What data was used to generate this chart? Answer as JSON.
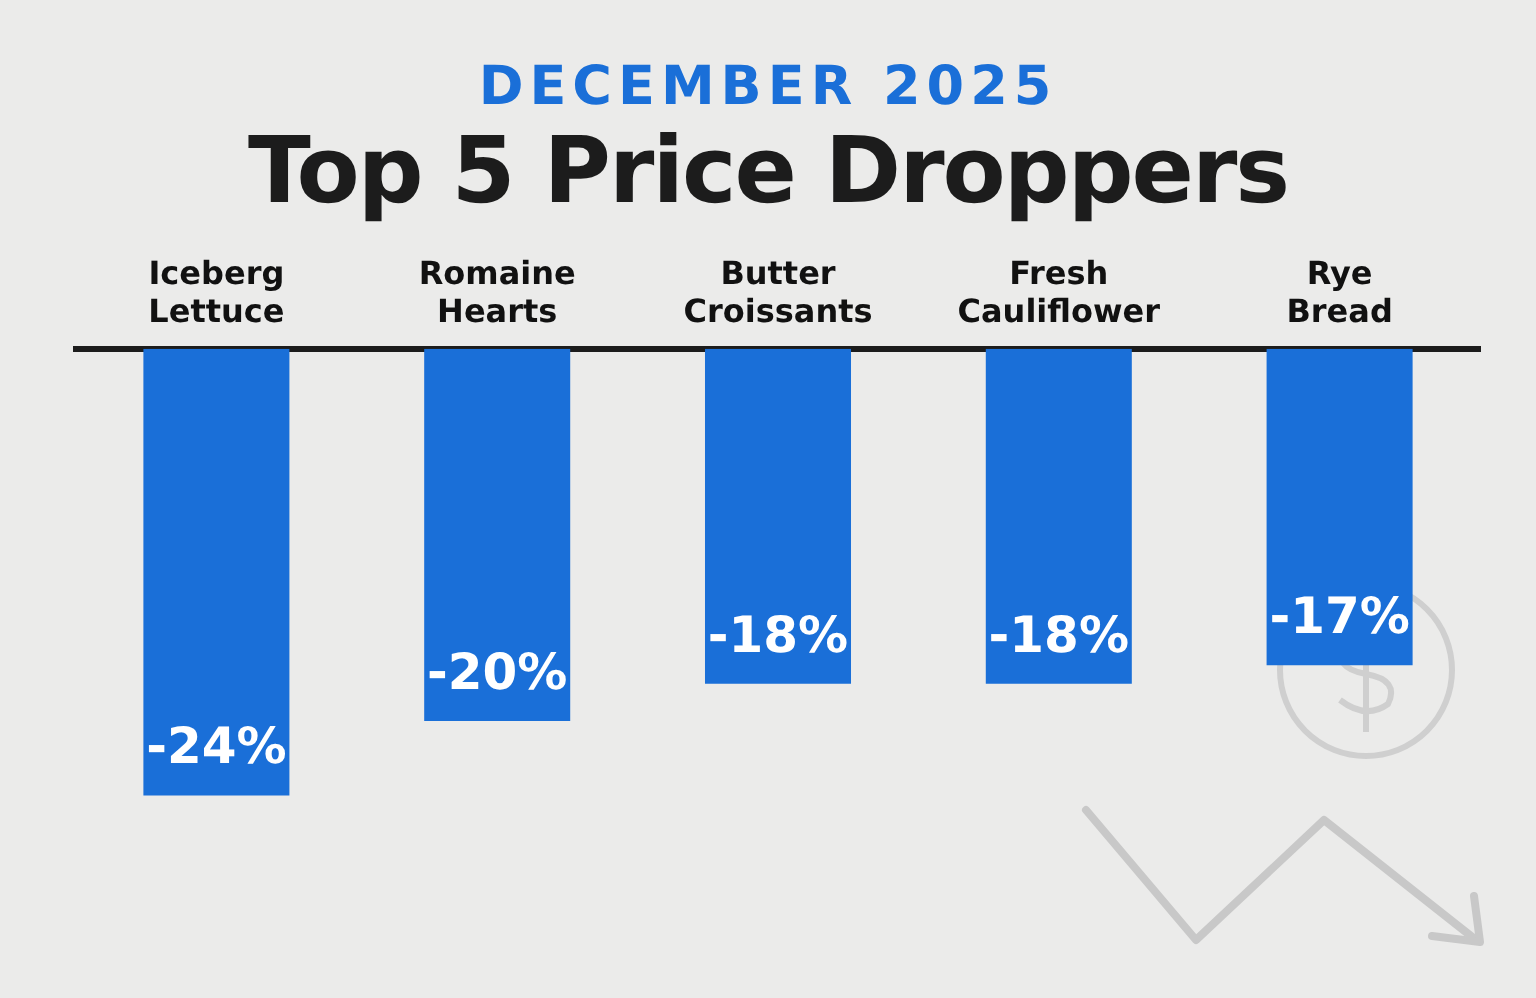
{
  "chart_data": {
    "type": "bar",
    "subtitle": "DECEMBER 2025",
    "title": "Top 5 Price Droppers",
    "categories": [
      "Iceberg Lettuce",
      "Romaine Hearts",
      "Butter Croissants",
      "Fresh Cauliflower",
      "Rye Bread"
    ],
    "values": [
      -24,
      -20,
      -18,
      -18,
      -17
    ],
    "value_labels": [
      "-24%",
      "-20%",
      "-18%",
      "-18%",
      "-17%"
    ],
    "color": "#1a6fd8",
    "tick_labels": "x",
    "grid": false,
    "legend": false
  }
}
